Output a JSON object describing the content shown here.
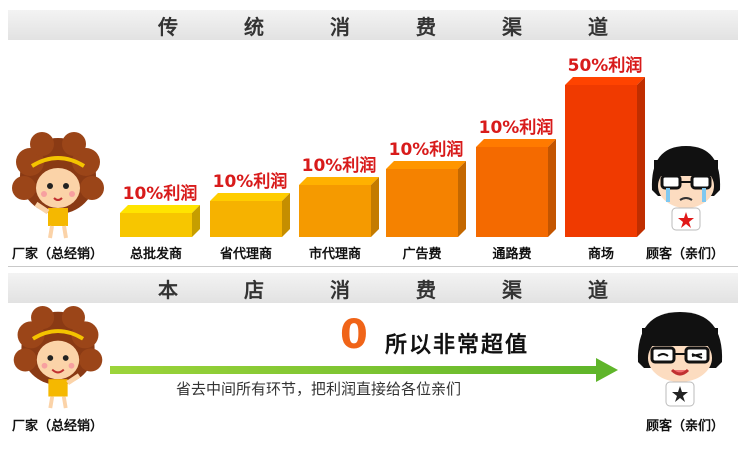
{
  "traditional": {
    "title_chars": [
      "传",
      "统",
      "消",
      "费",
      "渠",
      "道"
    ],
    "start_label": "厂家（总经销）",
    "end_label": "顾客（亲们）",
    "channels": [
      {
        "label": "总批发商",
        "margin": "10%利润",
        "level": 1,
        "color": "#f7c600"
      },
      {
        "label": "省代理商",
        "margin": "10%利润",
        "level": 2,
        "color": "#f6b200"
      },
      {
        "label": "市代理商",
        "margin": "10%利润",
        "level": 3,
        "color": "#f59a00"
      },
      {
        "label": "广告费",
        "margin": "10%利润",
        "level": 4,
        "color": "#f58200"
      },
      {
        "label": "通路费",
        "margin": "10%利润",
        "level": 5,
        "color": "#f46a00"
      },
      {
        "label": "商场",
        "margin": "50%利润",
        "level": 6,
        "color": "#f03a00"
      }
    ]
  },
  "store": {
    "title_chars": [
      "本",
      "店",
      "消",
      "费",
      "渠",
      "道"
    ],
    "start_label": "厂家（总经销）",
    "end_label": "顾客（亲们）",
    "zero": "0",
    "slogan": "所以非常超值",
    "note": "省去中间所有环节，把利润直接给各位亲们"
  }
}
